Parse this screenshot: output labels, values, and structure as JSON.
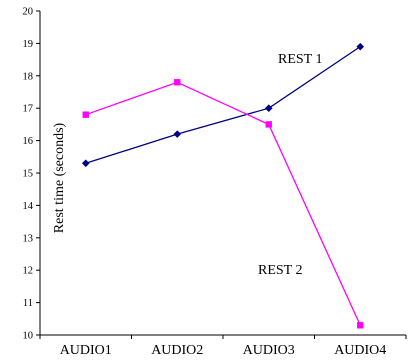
{
  "chart_data": {
    "type": "line",
    "title": "",
    "xlabel": "",
    "ylabel": "Rest time (seconds)",
    "categories": [
      "AUDIO1",
      "AUDIO2",
      "AUDIO3",
      "AUDIO4"
    ],
    "ylim": [
      10,
      20
    ],
    "yticks": [
      10,
      11,
      12,
      13,
      14,
      15,
      16,
      17,
      18,
      19,
      20
    ],
    "grid": false,
    "legend": "none",
    "series": [
      {
        "name": "REST 1",
        "values": [
          15.3,
          16.2,
          17.0,
          18.9
        ],
        "color": "#000080",
        "marker": "diamond"
      },
      {
        "name": "REST 2",
        "values": [
          16.8,
          17.8,
          16.5,
          10.3
        ],
        "color": "#FF00FF",
        "marker": "square"
      }
    ]
  }
}
